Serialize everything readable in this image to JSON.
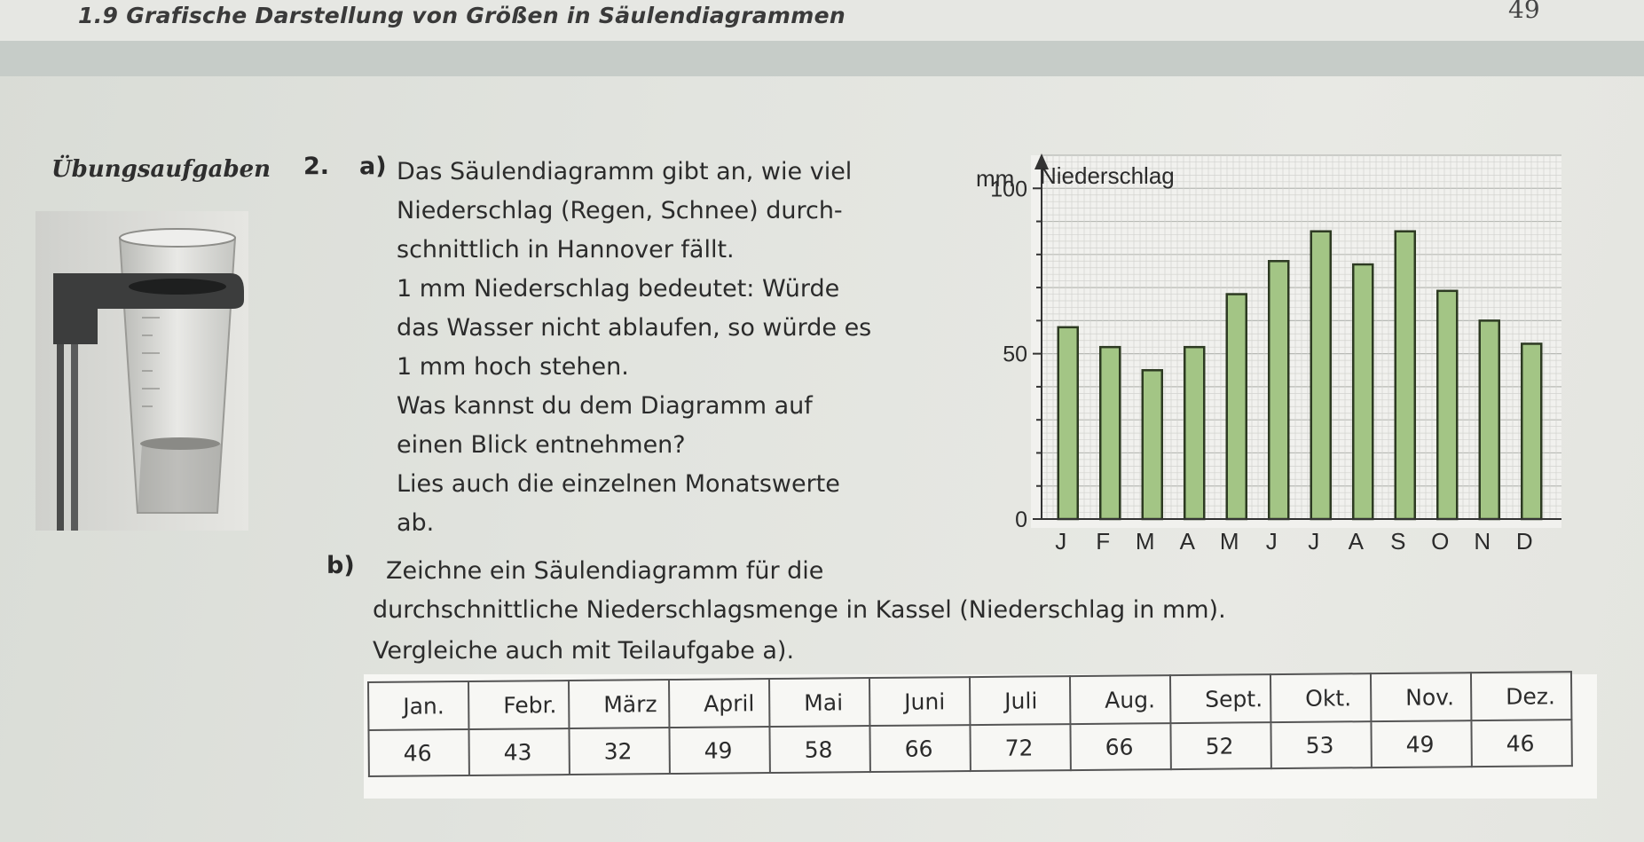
{
  "header": {
    "title": "1.9  Grafische Darstellung von Größen in Säulendiagrammen",
    "page_number": "49"
  },
  "section_label": "Übungsaufgaben",
  "task": {
    "number": "2.",
    "a_label": "a)",
    "a_lines": [
      "Das Säulendiagramm gibt an, wie viel",
      "Niederschlag (Regen, Schnee) durch-",
      "schnittlich in Hannover fällt.",
      "1 mm Niederschlag bedeutet: Würde",
      "das Wasser nicht ablaufen, so würde es",
      "1 mm hoch stehen.",
      "Was kannst du dem Diagramm auf",
      "einen Blick entnehmen?",
      "Lies auch die einzelnen Monatswerte",
      "ab."
    ],
    "b_label": "b)",
    "b_line1": "Zeichne ein Säulendiagramm für die",
    "b_line2": "durchschnittliche Niederschlagsmenge in Kassel (Niederschlag in mm).",
    "b_line3": "Vergleiche auch mit Teilaufgabe a)."
  },
  "chart_data": {
    "type": "bar",
    "title": "Niederschlag",
    "ylabel": "mm",
    "categories": [
      "J",
      "F",
      "M",
      "A",
      "M",
      "J",
      "J",
      "A",
      "S",
      "O",
      "N",
      "D"
    ],
    "values": [
      58,
      52,
      45,
      52,
      68,
      78,
      87,
      77,
      87,
      69,
      60,
      53
    ],
    "ylim": [
      0,
      110
    ],
    "yticks": [
      "0",
      "50",
      "100"
    ],
    "grid": true,
    "bar_color": "#a3c585"
  },
  "table": {
    "months": [
      "Jan.",
      "Febr.",
      "März",
      "April",
      "Mai",
      "Juni",
      "Juli",
      "Aug.",
      "Sept.",
      "Okt.",
      "Nov.",
      "Dez."
    ],
    "values": [
      "46",
      "43",
      "32",
      "49",
      "58",
      "66",
      "72",
      "66",
      "52",
      "53",
      "49",
      "46"
    ]
  }
}
